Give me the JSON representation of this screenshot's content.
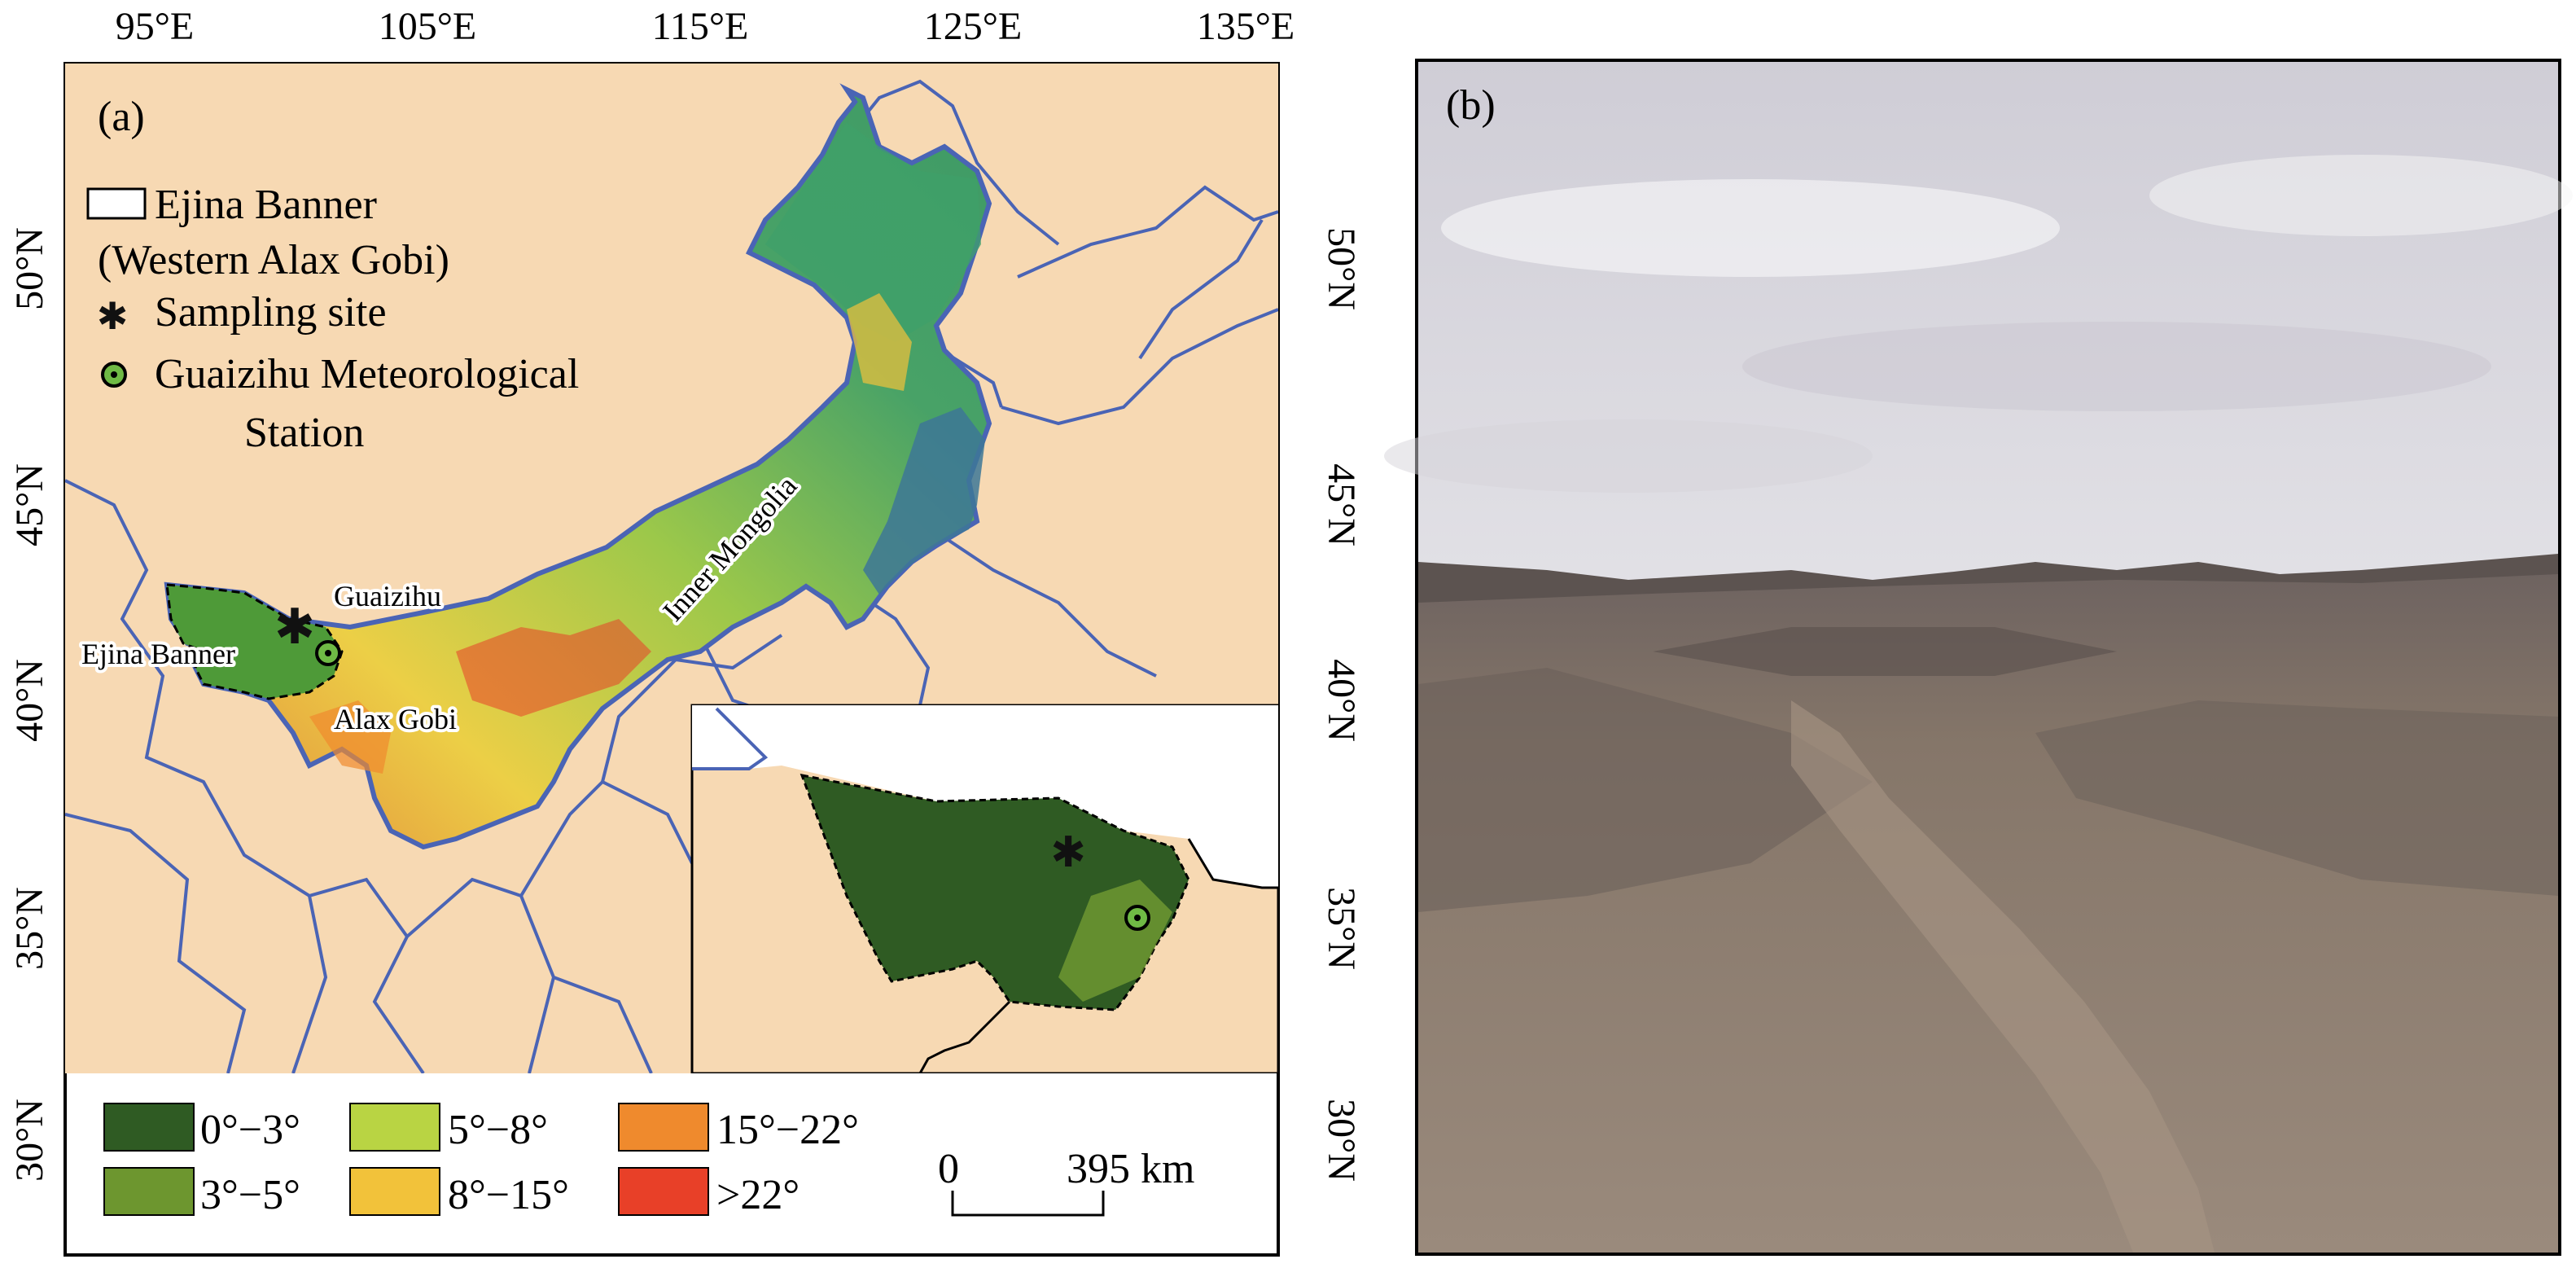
{
  "panel_a": {
    "label": "(a)",
    "lon_ticks": [
      "95°E",
      "105°E",
      "115°E",
      "125°E",
      "135°E"
    ],
    "lat_ticks_left": [
      "50°N",
      "45°N",
      "40°N",
      "35°N",
      "30°N"
    ],
    "lat_ticks_right": [
      "50°N",
      "45°N",
      "40°N",
      "35°N",
      "30°N"
    ],
    "legend": {
      "ejina": "Ejina Banner",
      "ejina_sub": "(Western Alax Gobi)",
      "sampling": "Sampling site",
      "station_line1": "Guaizihu Meteorological",
      "station_line2": "Station"
    },
    "map_labels": {
      "inner_mongolia": "Inner Mongolia",
      "guaizihu": "Guaizihu",
      "ejina_banner": "Ejina Banner",
      "alax_gobi": "Alax Gobi"
    },
    "slope_legend": [
      {
        "label": "0°−3°",
        "color": "#2f5b23"
      },
      {
        "label": "3°−5°",
        "color": "#6d962f"
      },
      {
        "label": "5°−8°",
        "color": "#b9d443"
      },
      {
        "label": "8°−15°",
        "color": "#f2c23a"
      },
      {
        "label": "15°−22°",
        "color": "#ef8a2d"
      },
      {
        "label": ">22°",
        "color": "#e84028"
      }
    ],
    "scale_bar": {
      "start": "0",
      "end": "395 km"
    },
    "colors": {
      "land": "#f7d9b3",
      "boundary": "#4a64b5",
      "lowland": "#3fa06a",
      "basin": "#3d7796",
      "inset_dark": "#2f5b23"
    }
  },
  "panel_b": {
    "label": "(b)",
    "description_colors": {
      "sky_top": "#d8d6de",
      "sky_low": "#eeeef0",
      "ground": "#8d7d72"
    }
  }
}
